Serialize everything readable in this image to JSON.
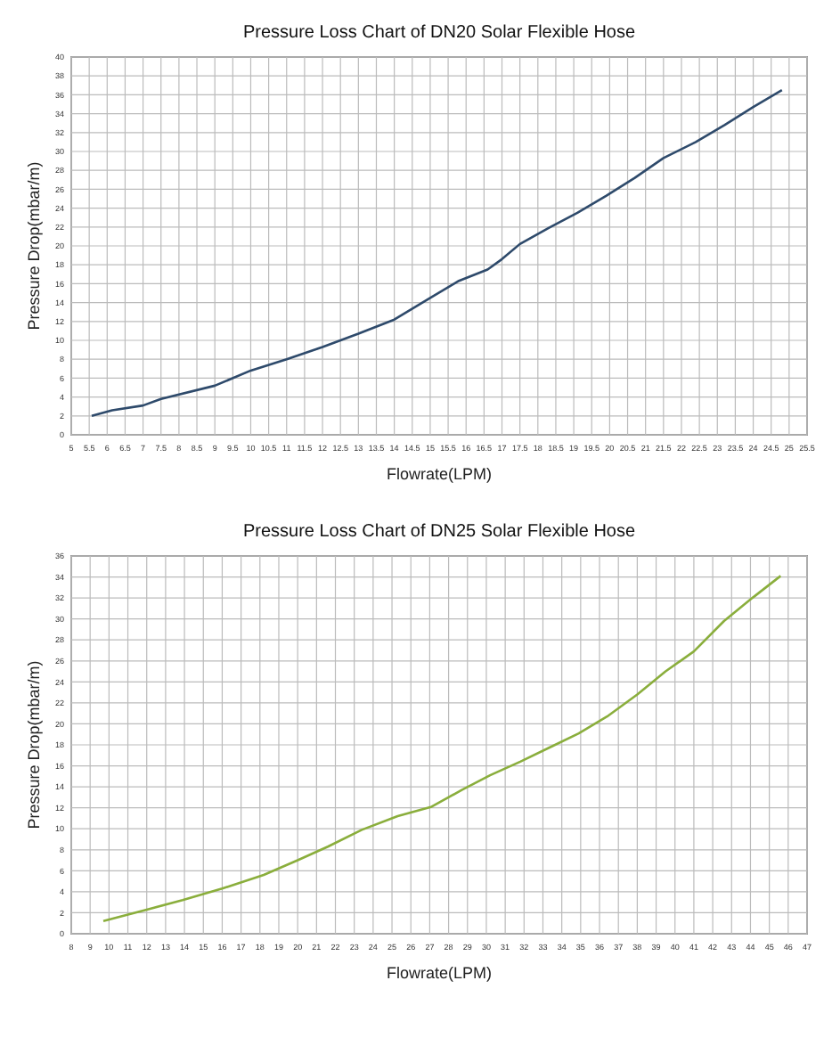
{
  "chart_data": [
    {
      "type": "line",
      "title": "Pressure Loss Chart of DN20 Solar Flexible Hose",
      "xlabel": "Flowrate(LPM)",
      "ylabel": "Pressure Drop(mbar/m)",
      "grid": true,
      "xlim": [
        5,
        25.5
      ],
      "xticks": [
        5,
        5.5,
        6,
        6.5,
        7,
        7.5,
        8,
        8.5,
        9,
        9.5,
        10,
        10.5,
        11,
        11.5,
        12,
        12.5,
        13,
        13.5,
        14,
        14.5,
        15,
        15.5,
        16,
        16.5,
        17,
        17.5,
        18,
        18.5,
        19,
        19.5,
        20,
        20.5,
        21,
        21.5,
        22,
        22.5,
        23,
        23.5,
        24,
        24.5,
        25,
        25.5
      ],
      "ylim": [
        0,
        40
      ],
      "yticks": [
        0,
        2,
        4,
        6,
        8,
        10,
        12,
        14,
        16,
        18,
        20,
        22,
        24,
        26,
        28,
        30,
        32,
        34,
        36,
        38,
        40
      ],
      "series": [
        {
          "color": "#2e4a6b",
          "x": [
            5.57,
            6.14,
            7,
            7.5,
            9,
            10,
            11,
            12,
            13,
            14,
            15,
            15.8,
            16.6,
            17,
            17.5,
            18.3,
            19.1,
            19.9,
            20.7,
            21.5,
            22.4,
            23.2,
            24,
            24.8
          ],
          "values": [
            2,
            2.6,
            3.1,
            3.8,
            5.2,
            6.8,
            8,
            9.3,
            10.7,
            12.2,
            14.5,
            16.3,
            17.5,
            18.6,
            20.2,
            21.9,
            23.5,
            25.3,
            27.2,
            29.3,
            31,
            32.8,
            34.7,
            36.5
          ]
        }
      ]
    },
    {
      "type": "line",
      "title": "Pressure Loss Chart of DN25 Solar Flexible Hose",
      "xlabel": "Flowrate(LPM)",
      "ylabel": "Pressure Drop(mbar/m)",
      "grid": true,
      "xlim": [
        8,
        47
      ],
      "xticks": [
        8,
        9,
        10,
        11,
        12,
        13,
        14,
        15,
        16,
        17,
        18,
        19,
        20,
        21,
        22,
        23,
        24,
        25,
        26,
        27,
        28,
        29,
        30,
        31,
        32,
        33,
        34,
        35,
        36,
        37,
        38,
        39,
        40,
        41,
        42,
        43,
        44,
        45,
        46,
        47
      ],
      "ylim": [
        0,
        36
      ],
      "yticks": [
        0,
        2,
        4,
        6,
        8,
        10,
        12,
        14,
        16,
        18,
        20,
        22,
        24,
        26,
        28,
        30,
        32,
        34,
        36
      ],
      "series": [
        {
          "color": "#8aae3c",
          "x": [
            9.7,
            12,
            13.9,
            16,
            18.2,
            20,
            21.6,
            23.4,
            25.3,
            27.1,
            28.7,
            30.2,
            31.8,
            33.3,
            34.9,
            36.4,
            38,
            39.5,
            41,
            42.6,
            44.1,
            45.6
          ],
          "values": [
            1.2,
            2.3,
            3.2,
            4.3,
            5.6,
            7,
            8.3,
            9.9,
            11.2,
            12.1,
            13.7,
            15.1,
            16.4,
            17.7,
            19.1,
            20.7,
            22.8,
            25,
            26.9,
            29.8,
            32,
            34.1
          ]
        }
      ]
    }
  ]
}
